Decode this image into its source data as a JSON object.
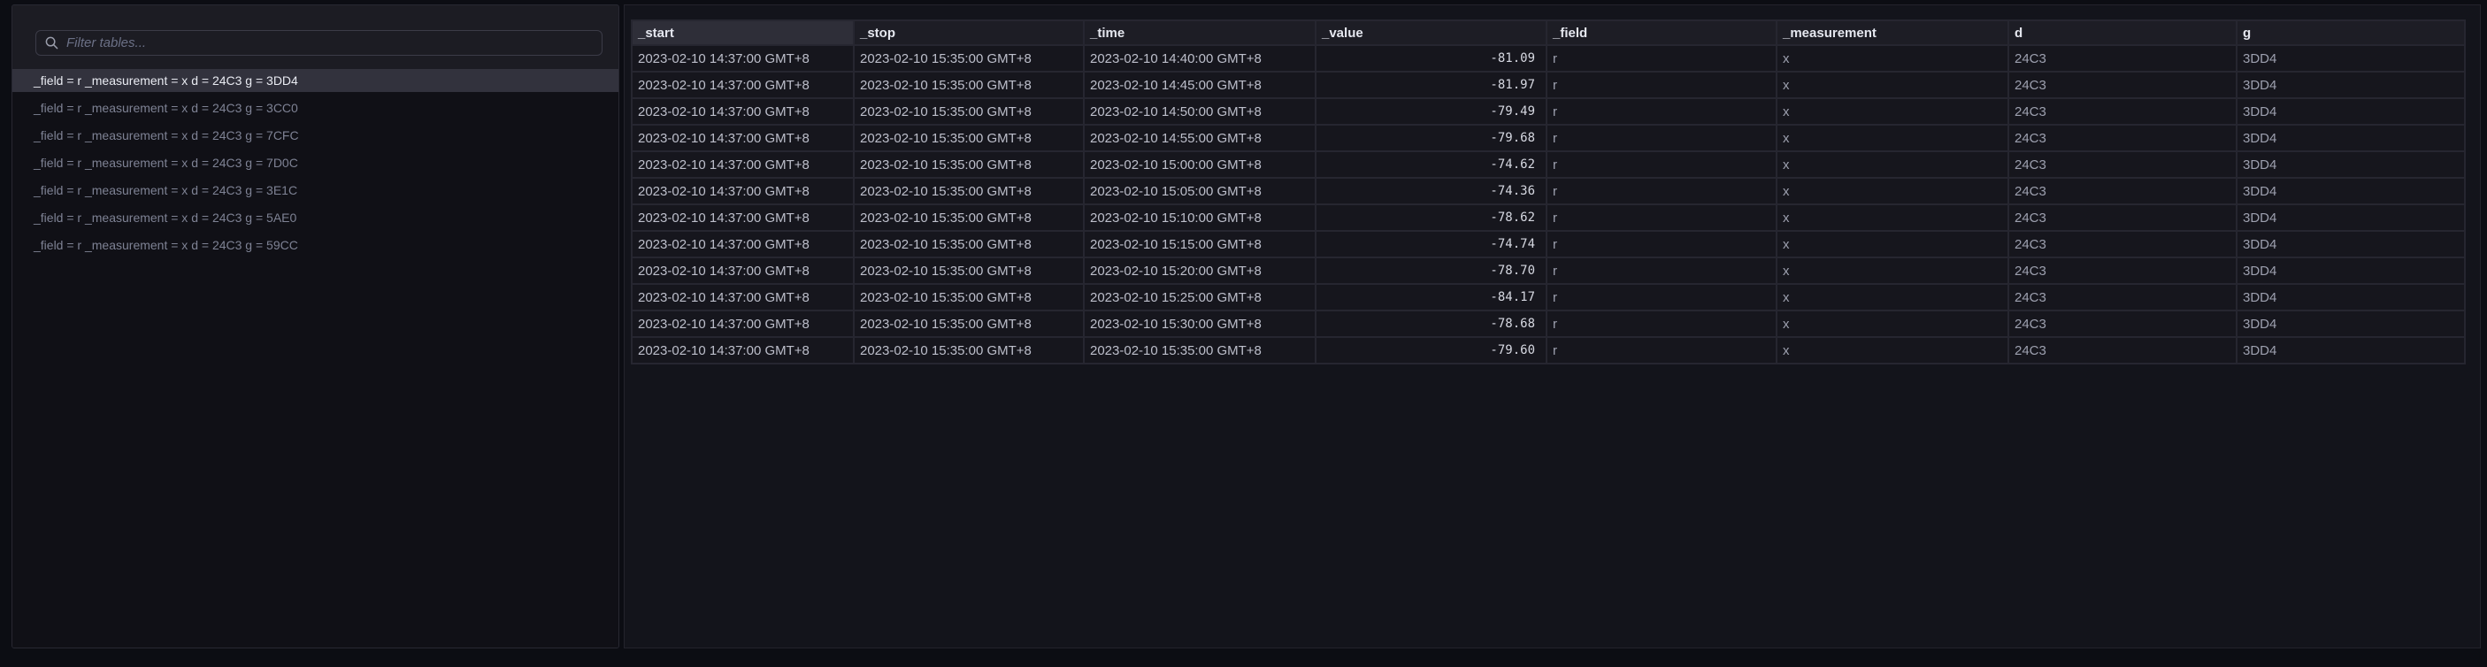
{
  "sidebar": {
    "filter_placeholder": "Filter tables...",
    "items": [
      {
        "label": "_field = r _measurement = x d = 24C3 g = 3DD4",
        "selected": true
      },
      {
        "label": "_field = r _measurement = x d = 24C3 g = 3CC0",
        "selected": false
      },
      {
        "label": "_field = r _measurement = x d = 24C3 g = 7CFC",
        "selected": false
      },
      {
        "label": "_field = r _measurement = x d = 24C3 g = 7D0C",
        "selected": false
      },
      {
        "label": "_field = r _measurement = x d = 24C3 g = 3E1C",
        "selected": false
      },
      {
        "label": "_field = r _measurement = x d = 24C3 g = 5AE0",
        "selected": false
      },
      {
        "label": "_field = r _measurement = x d = 24C3 g = 59CC",
        "selected": false
      }
    ]
  },
  "table": {
    "columns": [
      "_start",
      "_stop",
      "_time",
      "_value",
      "_field",
      "_measurement",
      "d",
      "g"
    ],
    "highlighted_column": "_start",
    "rows": [
      [
        "2023-02-10 14:37:00 GMT+8",
        "2023-02-10 15:35:00 GMT+8",
        "2023-02-10 14:40:00 GMT+8",
        "-81.09",
        "r",
        "x",
        "24C3",
        "3DD4"
      ],
      [
        "2023-02-10 14:37:00 GMT+8",
        "2023-02-10 15:35:00 GMT+8",
        "2023-02-10 14:45:00 GMT+8",
        "-81.97",
        "r",
        "x",
        "24C3",
        "3DD4"
      ],
      [
        "2023-02-10 14:37:00 GMT+8",
        "2023-02-10 15:35:00 GMT+8",
        "2023-02-10 14:50:00 GMT+8",
        "-79.49",
        "r",
        "x",
        "24C3",
        "3DD4"
      ],
      [
        "2023-02-10 14:37:00 GMT+8",
        "2023-02-10 15:35:00 GMT+8",
        "2023-02-10 14:55:00 GMT+8",
        "-79.68",
        "r",
        "x",
        "24C3",
        "3DD4"
      ],
      [
        "2023-02-10 14:37:00 GMT+8",
        "2023-02-10 15:35:00 GMT+8",
        "2023-02-10 15:00:00 GMT+8",
        "-74.62",
        "r",
        "x",
        "24C3",
        "3DD4"
      ],
      [
        "2023-02-10 14:37:00 GMT+8",
        "2023-02-10 15:35:00 GMT+8",
        "2023-02-10 15:05:00 GMT+8",
        "-74.36",
        "r",
        "x",
        "24C3",
        "3DD4"
      ],
      [
        "2023-02-10 14:37:00 GMT+8",
        "2023-02-10 15:35:00 GMT+8",
        "2023-02-10 15:10:00 GMT+8",
        "-78.62",
        "r",
        "x",
        "24C3",
        "3DD4"
      ],
      [
        "2023-02-10 14:37:00 GMT+8",
        "2023-02-10 15:35:00 GMT+8",
        "2023-02-10 15:15:00 GMT+8",
        "-74.74",
        "r",
        "x",
        "24C3",
        "3DD4"
      ],
      [
        "2023-02-10 14:37:00 GMT+8",
        "2023-02-10 15:35:00 GMT+8",
        "2023-02-10 15:20:00 GMT+8",
        "-78.70",
        "r",
        "x",
        "24C3",
        "3DD4"
      ],
      [
        "2023-02-10 14:37:00 GMT+8",
        "2023-02-10 15:35:00 GMT+8",
        "2023-02-10 15:25:00 GMT+8",
        "-84.17",
        "r",
        "x",
        "24C3",
        "3DD4"
      ],
      [
        "2023-02-10 14:37:00 GMT+8",
        "2023-02-10 15:35:00 GMT+8",
        "2023-02-10 15:30:00 GMT+8",
        "-78.68",
        "r",
        "x",
        "24C3",
        "3DD4"
      ],
      [
        "2023-02-10 14:37:00 GMT+8",
        "2023-02-10 15:35:00 GMT+8",
        "2023-02-10 15:35:00 GMT+8",
        "-79.60",
        "r",
        "x",
        "24C3",
        "3DD4"
      ]
    ]
  },
  "icons": {
    "search": "magnifier-icon"
  },
  "colors": {
    "selected_item_bg": "#32323d",
    "highlighted_header_bg": "#2e2e38",
    "row_bg": "#16161d",
    "panel_bg": "#1c1c23"
  }
}
